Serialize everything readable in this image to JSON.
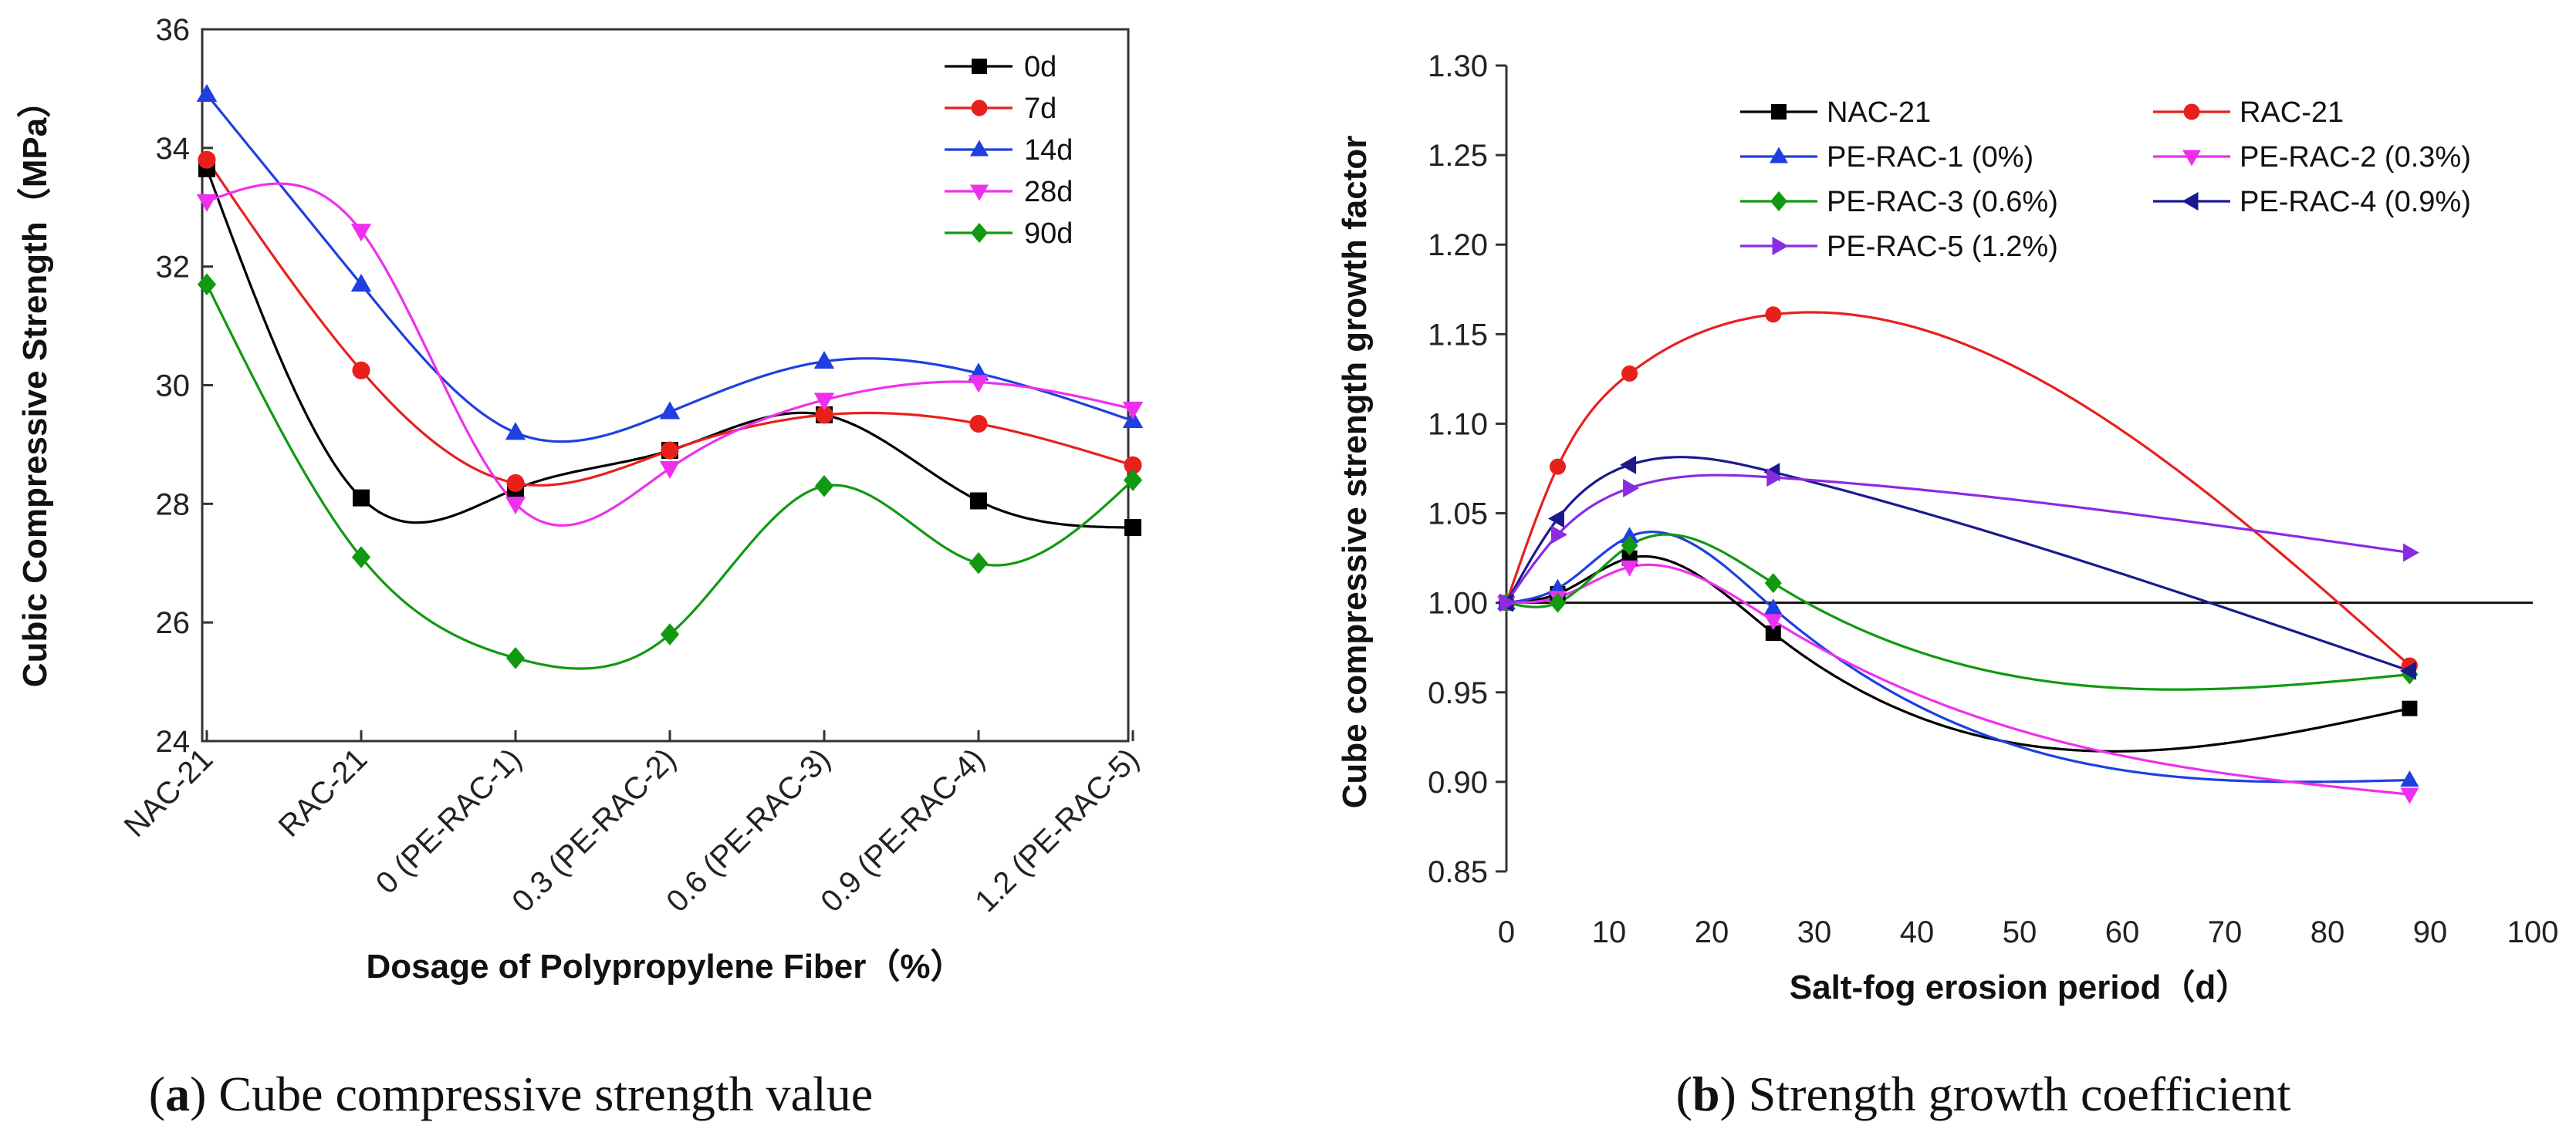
{
  "chart_data": [
    {
      "type": "line",
      "title": "",
      "xlabel": "Dosage of Polypropylene Fiber（%）",
      "ylabel": "Cubic Compressive Strength（MPa）",
      "categories": [
        "NAC-21",
        "RAC-21",
        "0 (PE-RAC-1)",
        "0.3 (PE-RAC-2)",
        "0.6 (PE-RAC-3)",
        "0.9 (PE-RAC-4)",
        "1.2 (PE-RAC-5)"
      ],
      "ylim": [
        24,
        36
      ],
      "yticks": [
        "24",
        "26",
        "28",
        "30",
        "32",
        "34",
        "36"
      ],
      "legend_position": "top-right",
      "smooth": true,
      "series": [
        {
          "name": "0d",
          "color": "#000000",
          "marker": "square",
          "values": [
            33.65,
            28.1,
            28.25,
            28.9,
            29.5,
            28.05,
            27.6
          ]
        },
        {
          "name": "7d",
          "color": "#e8201c",
          "marker": "circle",
          "values": [
            33.8,
            30.25,
            28.35,
            28.9,
            29.5,
            29.35,
            28.65
          ]
        },
        {
          "name": "14d",
          "color": "#1f3fe0",
          "marker": "triangle-up",
          "values": [
            34.9,
            31.7,
            29.2,
            29.55,
            30.4,
            30.2,
            29.4
          ]
        },
        {
          "name": "28d",
          "color": "#ee30ee",
          "marker": "triangle-down",
          "values": [
            33.1,
            32.6,
            28.0,
            28.6,
            29.75,
            30.05,
            29.6
          ]
        },
        {
          "name": "90d",
          "color": "#119911",
          "marker": "diamond",
          "values": [
            31.7,
            27.1,
            25.4,
            25.8,
            28.3,
            27.0,
            28.4
          ]
        }
      ],
      "caption_bold": "a",
      "caption_text": "Cube compressive strength value"
    },
    {
      "type": "line",
      "title": "",
      "xlabel": "Salt-fog erosion period（d）",
      "ylabel": "Cube compressive strength growth factor",
      "xlim": [
        0,
        100
      ],
      "ylim": [
        0.85,
        1.3
      ],
      "xticks": [
        "0",
        "10",
        "20",
        "30",
        "40",
        "50",
        "60",
        "70",
        "80",
        "90",
        "100"
      ],
      "yticks": [
        "0.85",
        "0.90",
        "0.95",
        "1.00",
        "1.05",
        "1.10",
        "1.15",
        "1.20",
        "1.25",
        "1.30"
      ],
      "baseline": 1.0,
      "x": [
        0,
        5,
        12,
        26,
        88
      ],
      "legend_position": "top",
      "smooth": true,
      "series": [
        {
          "name": "NAC-21",
          "color": "#000000",
          "marker": "square",
          "values": [
            1.0,
            1.005,
            1.025,
            0.983,
            0.941
          ]
        },
        {
          "name": "RAC-21",
          "color": "#e8201c",
          "marker": "circle",
          "values": [
            1.0,
            1.076,
            1.128,
            1.161,
            0.965
          ]
        },
        {
          "name": "PE-RAC-1 (0%)",
          "color": "#1f3fe0",
          "marker": "triangle-up",
          "values": [
            1.0,
            1.008,
            1.037,
            0.997,
            0.901
          ]
        },
        {
          "name": "PE-RAC-2 (0.3%)",
          "color": "#ee30ee",
          "marker": "triangle-down",
          "values": [
            1.0,
            1.003,
            1.02,
            0.99,
            0.893
          ]
        },
        {
          "name": "PE-RAC-3 (0.6%)",
          "color": "#119911",
          "marker": "diamond",
          "values": [
            1.0,
            1.0,
            1.032,
            1.011,
            0.96
          ]
        },
        {
          "name": "PE-RAC-4 (0.9%)",
          "color": "#1a1a8c",
          "marker": "triangle-left",
          "values": [
            1.0,
            1.047,
            1.077,
            1.073,
            0.962
          ]
        },
        {
          "name": "PE-RAC-5 (1.2%)",
          "color": "#8a2be2",
          "marker": "triangle-right",
          "values": [
            1.0,
            1.038,
            1.064,
            1.07,
            1.028
          ]
        }
      ],
      "caption_bold": "b",
      "caption_text": "Strength growth coefficient"
    }
  ]
}
